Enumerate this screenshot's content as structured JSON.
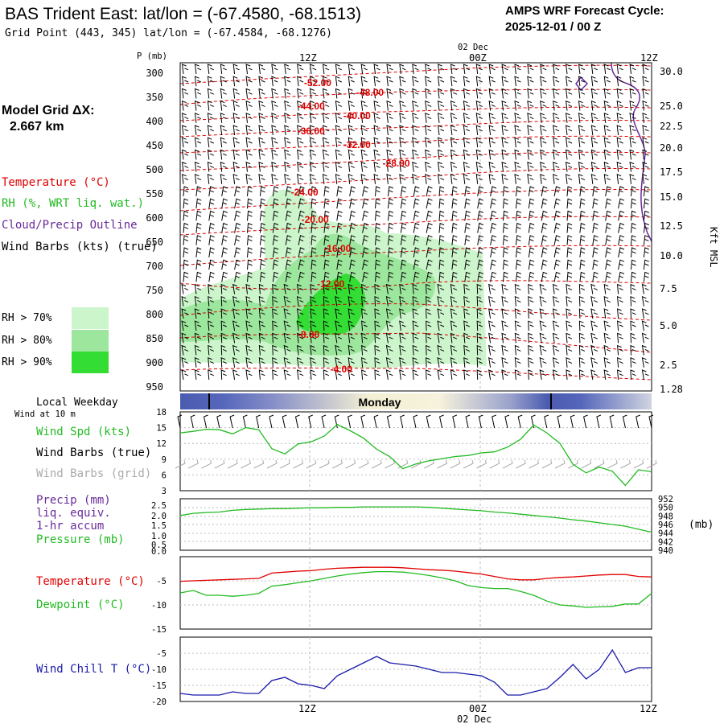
{
  "header": {
    "title": "BAS Trident East:  lat/lon = (-67.4580, -68.1513)",
    "subtitle": "Grid Point (443, 345) lat/lon = (-67.4584, -68.1276)",
    "cycle_line1": "AMPS WRF Forecast Cycle:",
    "cycle_line2": "2025-12-01 / 00  Z"
  },
  "model_grid": {
    "line1": "Model Grid ΔX:",
    "line2": "2.667 km"
  },
  "colors": {
    "temperature": "#e00000",
    "rh70": "#ccf5cc",
    "rh80": "#9de69d",
    "rh90": "#33dd33",
    "cloud": "#6a2a9a",
    "wind": "#000000",
    "wind_grid": "#aaaaaa",
    "speed": "#22bb22",
    "pressure": "#22bb22",
    "dewpoint": "#22bb22",
    "windchill": "#1a1aaa"
  },
  "upper_panel": {
    "y_axis_title": "P (mb)",
    "pressure_ticks": [
      "300",
      "350",
      "400",
      "450",
      "500",
      "550",
      "600",
      "650",
      "700",
      "750",
      "800",
      "850",
      "900",
      "950"
    ],
    "height_ticks": [
      "30.0",
      "25.0",
      "22.5",
      "20.0",
      "17.5",
      "15.0",
      "12.5",
      "10.0",
      "7.5",
      "5.0",
      "2.5",
      "1.28"
    ],
    "right_axis_title": "Kft MSL",
    "top_date": "02 Dec",
    "time_ticks": [
      "12Z",
      "00Z",
      "12Z"
    ],
    "legend": {
      "temperature": "Temperature (°C)",
      "rh": "RH (%, WRT liq. wat.)",
      "cloud": "Cloud/Precip Outline",
      "wind": "Wind Barbs (kts) (true)",
      "rh70": "RH > 70%",
      "rh80": "RH > 80%",
      "rh90": "RH > 90%"
    },
    "isotherms": [
      {
        "label": "-52.00",
        "pressure": 322,
        "hour": 10.5
      },
      {
        "label": "-48.00",
        "pressure": 342,
        "hour": 14.5
      },
      {
        "label": "-44.00",
        "pressure": 370,
        "hour": 10.0
      },
      {
        "label": "-40.00",
        "pressure": 390,
        "hour": 13.5
      },
      {
        "label": "-36.00",
        "pressure": 422,
        "hour": 10.0
      },
      {
        "label": "-32.00",
        "pressure": 450,
        "hour": 13.5
      },
      {
        "label": "-28.00",
        "pressure": 488,
        "hour": 16.5
      },
      {
        "label": "-24.00",
        "pressure": 548,
        "hour": 9.5
      },
      {
        "label": "-20.00",
        "pressure": 605,
        "hour": 10.3
      },
      {
        "label": "-16.00",
        "pressure": 665,
        "hour": 12.0
      },
      {
        "label": "-12.00",
        "pressure": 738,
        "hour": 11.5
      },
      {
        "label": "-8.00",
        "pressure": 843,
        "hour": 9.8
      },
      {
        "label": "-4.00",
        "pressure": 915,
        "hour": 12.3
      }
    ]
  },
  "weekday_bar": {
    "title": "Local Weekday",
    "day": "Monday"
  },
  "wind_panel": {
    "header": "Wind at 10 m",
    "labels": {
      "speed": "Wind Spd (kts)",
      "barbs": "Wind Barbs (true)",
      "grid": "Wind Barbs (grid)"
    },
    "y_ticks": [
      "18",
      "15",
      "12",
      "9",
      "6",
      "3"
    ]
  },
  "precip_panel": {
    "labels": {
      "precip": "Precip (mm)",
      "liq": "liq. equiv.",
      "accum": "1-hr accum",
      "pressure": "Pressure (mb)"
    },
    "left_ticks": [
      "2.5",
      "2.0",
      "1.5",
      "1.0",
      "0.5",
      "0.0",
      "0.0"
    ],
    "right_ticks": [
      "952",
      "950",
      "948",
      "946",
      "944",
      "942",
      "940"
    ],
    "right_unit": "(mb)"
  },
  "temp_panel": {
    "labels": {
      "temperature": "Temperature (°C)",
      "dewpoint": "Dewpoint (°C)"
    },
    "y_ticks": [
      "-5",
      "-10",
      "-15"
    ]
  },
  "chill_panel": {
    "label": "Wind Chill T (°C)",
    "y_ticks": [
      "-5",
      "-10",
      "-15",
      "-20"
    ]
  },
  "bottom_axis": {
    "ticks": [
      "12Z",
      "00Z",
      "12Z"
    ],
    "date": "02 Dec"
  },
  "chart_data": {
    "type": "line",
    "x_hours": [
      0,
      1,
      2,
      3,
      4,
      5,
      6,
      7,
      8,
      9,
      10,
      11,
      12,
      13,
      14,
      15,
      16,
      17,
      18,
      19,
      20,
      21,
      22,
      23,
      24,
      25,
      26,
      27,
      28,
      29,
      30,
      31,
      32,
      33,
      34,
      35,
      36
    ],
    "x_labels": {
      "12": "12Z",
      "24": "00Z",
      "36": "12Z"
    },
    "series": [
      {
        "name": "Wind Spd (kts)",
        "ylim": [
          3,
          18
        ],
        "values": [
          14,
          14.3,
          14.7,
          14.6,
          13.8,
          15,
          14.6,
          11,
          10,
          11.9,
          12.3,
          13.4,
          15.6,
          14.4,
          13,
          10.9,
          9.5,
          7.2,
          8.1,
          8.7,
          9.1,
          9.5,
          9.7,
          10.2,
          10.4,
          11.3,
          12.8,
          15.5,
          14,
          12,
          8,
          6.4,
          7.5,
          6.7,
          4,
          7,
          6.6
        ]
      },
      {
        "name": "Pressure (mb)",
        "ylim": [
          940,
          952
        ],
        "values": [
          948.1,
          948.6,
          948.8,
          948.9,
          949.3,
          949.5,
          949.6,
          949.7,
          949.7,
          949.8,
          949.9,
          949.9,
          950.0,
          950.0,
          950.1,
          950.1,
          950.1,
          950.1,
          950.1,
          950.0,
          949.8,
          949.6,
          949.4,
          949.2,
          948.9,
          948.7,
          948.4,
          948.1,
          947.8,
          947.5,
          947.1,
          946.8,
          946.4,
          946.0,
          945.6,
          944.9,
          944.2
        ]
      },
      {
        "name": "Temperature (°C)",
        "ylim": [
          -15,
          0
        ],
        "values": [
          -5.1,
          -5,
          -4.9,
          -4.8,
          -4.7,
          -4.6,
          -4.5,
          -3.4,
          -3.2,
          -3.0,
          -2.9,
          -2.6,
          -2.4,
          -2.3,
          -2.2,
          -2.2,
          -2.2,
          -2.3,
          -2.5,
          -2.7,
          -2.8,
          -3,
          -3.3,
          -3.6,
          -4.1,
          -4.6,
          -4.8,
          -4.8,
          -4.5,
          -4.3,
          -4.2,
          -4.0,
          -3.8,
          -3.7,
          -3.7,
          -4.1,
          -4.2
        ]
      },
      {
        "name": "Dewpoint (°C)",
        "ylim": [
          -15,
          0
        ],
        "values": [
          -7.5,
          -7,
          -8,
          -8,
          -8.2,
          -8,
          -7.6,
          -6.1,
          -5.8,
          -5.4,
          -5,
          -4.5,
          -4,
          -3.6,
          -3.3,
          -3.1,
          -3.1,
          -3.2,
          -3.5,
          -3.9,
          -4.4,
          -5,
          -6,
          -6.4,
          -6.6,
          -6.6,
          -7.2,
          -8,
          -9.2,
          -10,
          -10.2,
          -10.5,
          -10.4,
          -10.3,
          -9.8,
          -9.8,
          -7.6
        ]
      },
      {
        "name": "Wind Chill T (°C)",
        "ylim": [
          -20,
          0
        ],
        "values": [
          -17.5,
          -18,
          -18,
          -18,
          -17,
          -17.5,
          -17.5,
          -13.5,
          -12.5,
          -14.5,
          -15,
          -16,
          -12,
          -10,
          -8,
          -6,
          -8,
          -8.5,
          -9,
          -10,
          -11,
          -11,
          -11.5,
          -12,
          -14,
          -18,
          -18,
          -17,
          -16,
          -12.5,
          -8.5,
          -13,
          -10,
          -4,
          -11,
          -9.5,
          -9.5
        ]
      }
    ]
  }
}
